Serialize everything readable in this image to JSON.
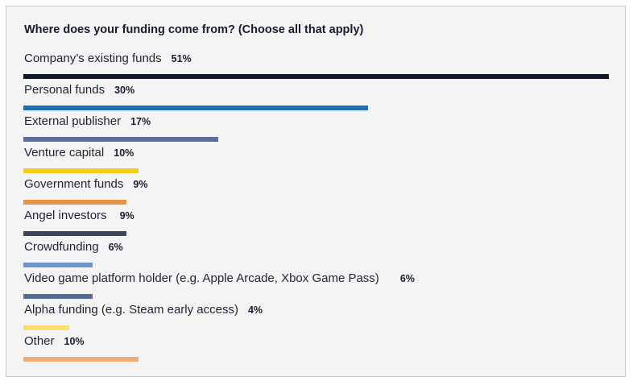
{
  "chart_data": {
    "type": "bar",
    "orientation": "horizontal",
    "title": "Where does your funding come from? (Choose all that apply)",
    "xlabel": "",
    "ylabel": "",
    "xlim": [
      0,
      51
    ],
    "categories": [
      "Company’s existing funds",
      "Personal funds",
      "External publisher",
      "Venture capital",
      "Government funds",
      "Angel investors",
      "Crowdfunding",
      "Video game platform holder (e.g. Apple Arcade, Xbox Game Pass)",
      "Alpha funding (e.g. Steam early access)",
      "Other"
    ],
    "values": [
      51,
      30,
      17,
      10,
      9,
      9,
      6,
      6,
      4,
      10
    ],
    "value_labels": [
      "51%",
      "30%",
      "17%",
      "10%",
      "9%",
      "9%",
      "6%",
      "6%",
      "4%",
      "10%"
    ],
    "colors": [
      "#111a2c",
      "#1e6fb8",
      "#5a6f9c",
      "#f5cc1a",
      "#ea9243",
      "#3f4657",
      "#6d93cc",
      "#586a98",
      "#f7df72",
      "#f1ac75"
    ]
  }
}
